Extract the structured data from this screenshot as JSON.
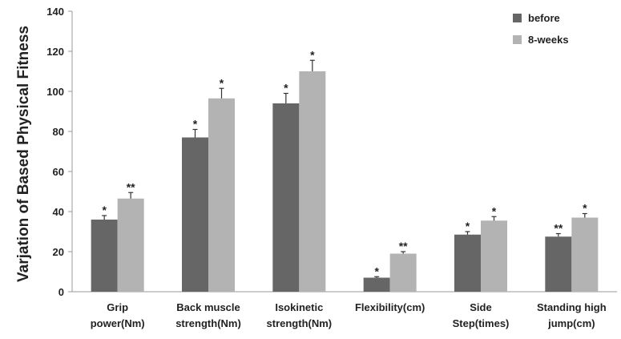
{
  "chart_data": {
    "type": "bar",
    "ylabel": "Varjation of Based Physical Fitness",
    "ylim": [
      0,
      140
    ],
    "yticks": [
      "0",
      "20",
      "40",
      "60",
      "80",
      "100",
      "120",
      "140"
    ],
    "categories": [
      [
        "Grip",
        "power(Nm)"
      ],
      [
        "Back muscle",
        "strength(Nm)"
      ],
      [
        "Isokinetic",
        "strength(Nm)"
      ],
      [
        "Flexibility(cm)"
      ],
      [
        "Side",
        "Step(times)"
      ],
      [
        "Standing high",
        "jump(cm)"
      ]
    ],
    "series": [
      {
        "name": "before",
        "color": "#666666",
        "values": [
          36,
          77,
          94,
          7,
          28.5,
          27.5
        ],
        "errors": [
          2,
          4,
          5,
          0.5,
          1.5,
          1.5
        ],
        "markers": [
          "*",
          "*",
          "*",
          "*",
          "*",
          "**"
        ]
      },
      {
        "name": "8-weeks",
        "color": "#b3b3b3",
        "values": [
          46.5,
          96.5,
          110,
          19,
          35.5,
          37
        ],
        "errors": [
          3,
          5,
          5.5,
          1,
          2,
          2
        ],
        "markers": [
          "**",
          "*",
          "*",
          "**",
          "*",
          "*"
        ]
      }
    ],
    "legend_position": "top-right",
    "grid": false
  }
}
